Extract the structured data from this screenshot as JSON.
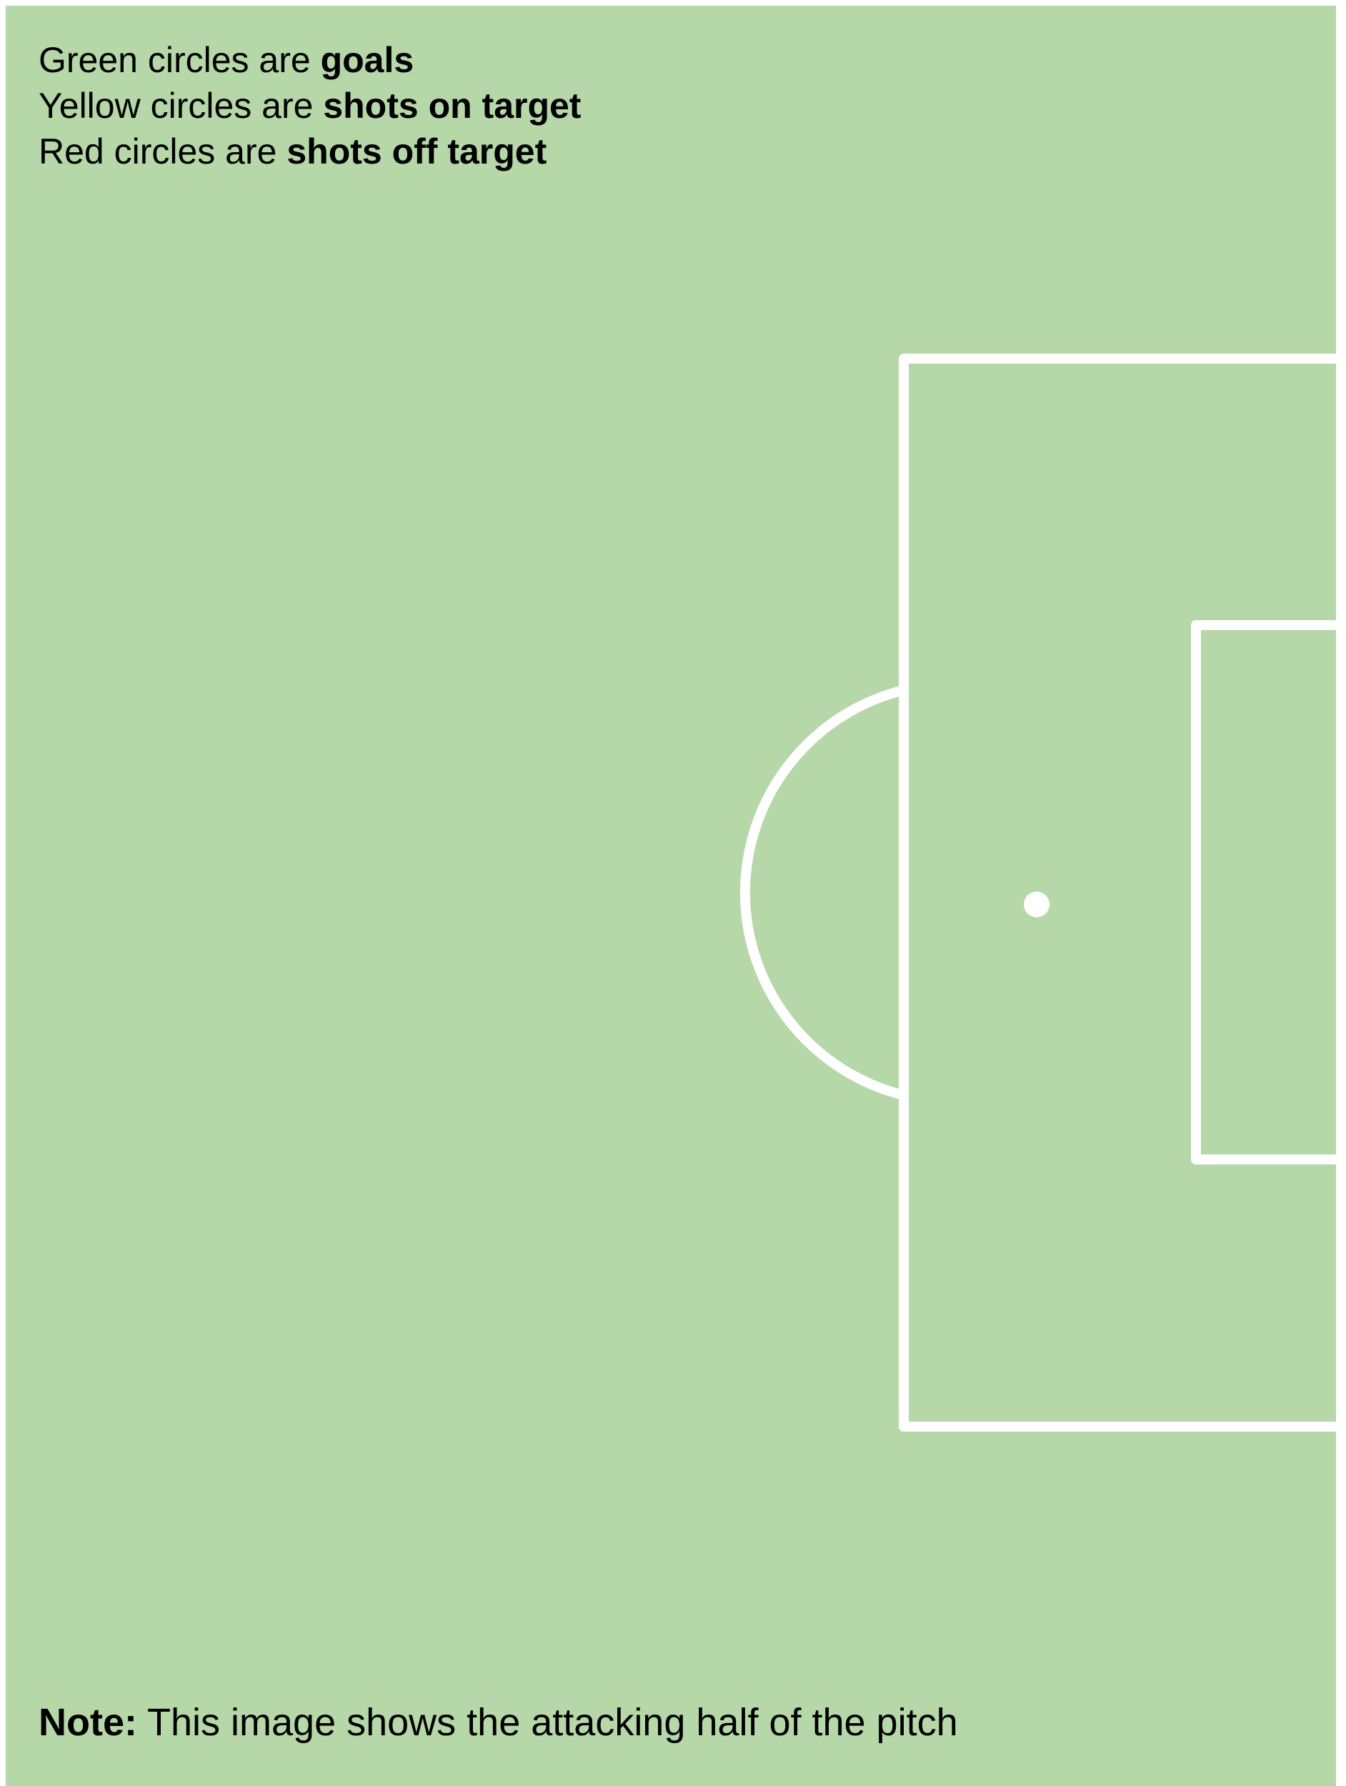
{
  "colors": {
    "pitch": "#b6d7a8",
    "lines": "#ffffff",
    "text": "#000000"
  },
  "legend": {
    "goals": {
      "prefix": "Green circles are ",
      "emphasis": "goals"
    },
    "on_target": {
      "prefix": "Yellow circles are ",
      "emphasis": "shots on target"
    },
    "off_target": {
      "prefix": "Red circles are ",
      "emphasis": "shots off target"
    }
  },
  "note": {
    "label": "Note:",
    "text": " This image shows the attacking half of the pitch"
  }
}
